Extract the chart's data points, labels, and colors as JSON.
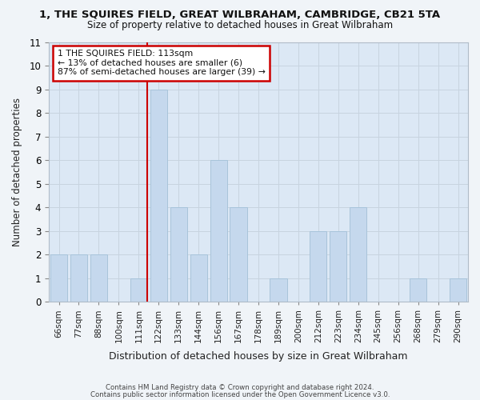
{
  "title": "1, THE SQUIRES FIELD, GREAT WILBRAHAM, CAMBRIDGE, CB21 5TA",
  "subtitle": "Size of property relative to detached houses in Great Wilbraham",
  "xlabel": "Distribution of detached houses by size in Great Wilbraham",
  "ylabel": "Number of detached properties",
  "categories": [
    "66sqm",
    "77sqm",
    "88sqm",
    "100sqm",
    "111sqm",
    "122sqm",
    "133sqm",
    "144sqm",
    "156sqm",
    "167sqm",
    "178sqm",
    "189sqm",
    "200sqm",
    "212sqm",
    "223sqm",
    "234sqm",
    "245sqm",
    "256sqm",
    "268sqm",
    "279sqm",
    "290sqm"
  ],
  "values": [
    2,
    2,
    2,
    0,
    1,
    9,
    4,
    2,
    6,
    4,
    0,
    1,
    0,
    3,
    3,
    4,
    0,
    0,
    1,
    0,
    1
  ],
  "bar_color": "#c5d8ed",
  "bar_edge_color": "#a8c4da",
  "highlight_index": 4,
  "highlight_line_color": "#cc0000",
  "ylim": [
    0,
    11
  ],
  "yticks": [
    0,
    1,
    2,
    3,
    4,
    5,
    6,
    7,
    8,
    9,
    10,
    11
  ],
  "annotation_text": "1 THE SQUIRES FIELD: 113sqm\n← 13% of detached houses are smaller (6)\n87% of semi-detached houses are larger (39) →",
  "annotation_box_color": "#ffffff",
  "annotation_border_color": "#cc0000",
  "footer1": "Contains HM Land Registry data © Crown copyright and database right 2024.",
  "footer2": "Contains public sector information licensed under the Open Government Licence v3.0.",
  "grid_color": "#c8d4e0",
  "plot_bg_color": "#dce8f5",
  "fig_bg_color": "#f0f4f8"
}
